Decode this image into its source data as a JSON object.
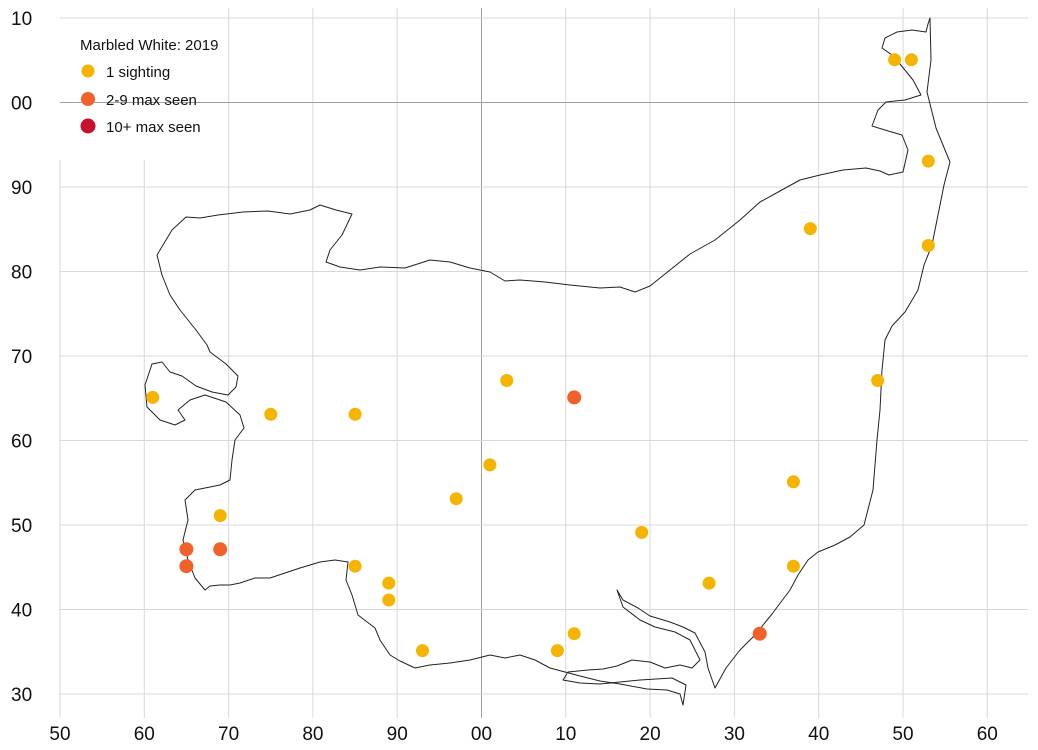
{
  "legend": {
    "title": "Marbled White:  2019",
    "items": [
      {
        "label": "1 sighting",
        "color": "#f5b400"
      },
      {
        "label": "2-9 max seen",
        "color": "#f2612a"
      },
      {
        "label": "10+ max seen",
        "color": "#c8102e"
      }
    ]
  },
  "axes": {
    "x_ticks": [
      "50",
      "60",
      "70",
      "80",
      "90",
      "00",
      "10",
      "20",
      "30",
      "40",
      "50",
      "60"
    ],
    "y_ticks": [
      "10",
      "00",
      "90",
      "80",
      "70",
      "60",
      "50",
      "40",
      "30"
    ]
  },
  "chart_data": {
    "type": "scatter",
    "x_range_km": [
      50,
      165
    ],
    "y_range_km": [
      230,
      310
    ],
    "points": [
      {
        "x": 149,
        "y": 305,
        "cat": 0
      },
      {
        "x": 151,
        "y": 305,
        "cat": 0
      },
      {
        "x": 153,
        "y": 293,
        "cat": 0
      },
      {
        "x": 139,
        "y": 285,
        "cat": 0
      },
      {
        "x": 153,
        "y": 283,
        "cat": 0
      },
      {
        "x": 147,
        "y": 267,
        "cat": 0
      },
      {
        "x": 61,
        "y": 265,
        "cat": 0
      },
      {
        "x": 75,
        "y": 263,
        "cat": 0
      },
      {
        "x": 85,
        "y": 263,
        "cat": 0
      },
      {
        "x": 103,
        "y": 267,
        "cat": 0
      },
      {
        "x": 111,
        "y": 265,
        "cat": 1
      },
      {
        "x": 101,
        "y": 257,
        "cat": 0
      },
      {
        "x": 137,
        "y": 255,
        "cat": 0
      },
      {
        "x": 97,
        "y": 253,
        "cat": 0
      },
      {
        "x": 69,
        "y": 251,
        "cat": 0
      },
      {
        "x": 119,
        "y": 249,
        "cat": 0
      },
      {
        "x": 65,
        "y": 247,
        "cat": 1
      },
      {
        "x": 69,
        "y": 247,
        "cat": 1
      },
      {
        "x": 65,
        "y": 245,
        "cat": 1
      },
      {
        "x": 85,
        "y": 245,
        "cat": 0
      },
      {
        "x": 137,
        "y": 245,
        "cat": 0
      },
      {
        "x": 89,
        "y": 243,
        "cat": 0
      },
      {
        "x": 127,
        "y": 243,
        "cat": 0
      },
      {
        "x": 89,
        "y": 241,
        "cat": 0
      },
      {
        "x": 111,
        "y": 237,
        "cat": 0
      },
      {
        "x": 133,
        "y": 237,
        "cat": 1
      },
      {
        "x": 93,
        "y": 235,
        "cat": 0
      },
      {
        "x": 109,
        "y": 235,
        "cat": 0
      }
    ]
  }
}
